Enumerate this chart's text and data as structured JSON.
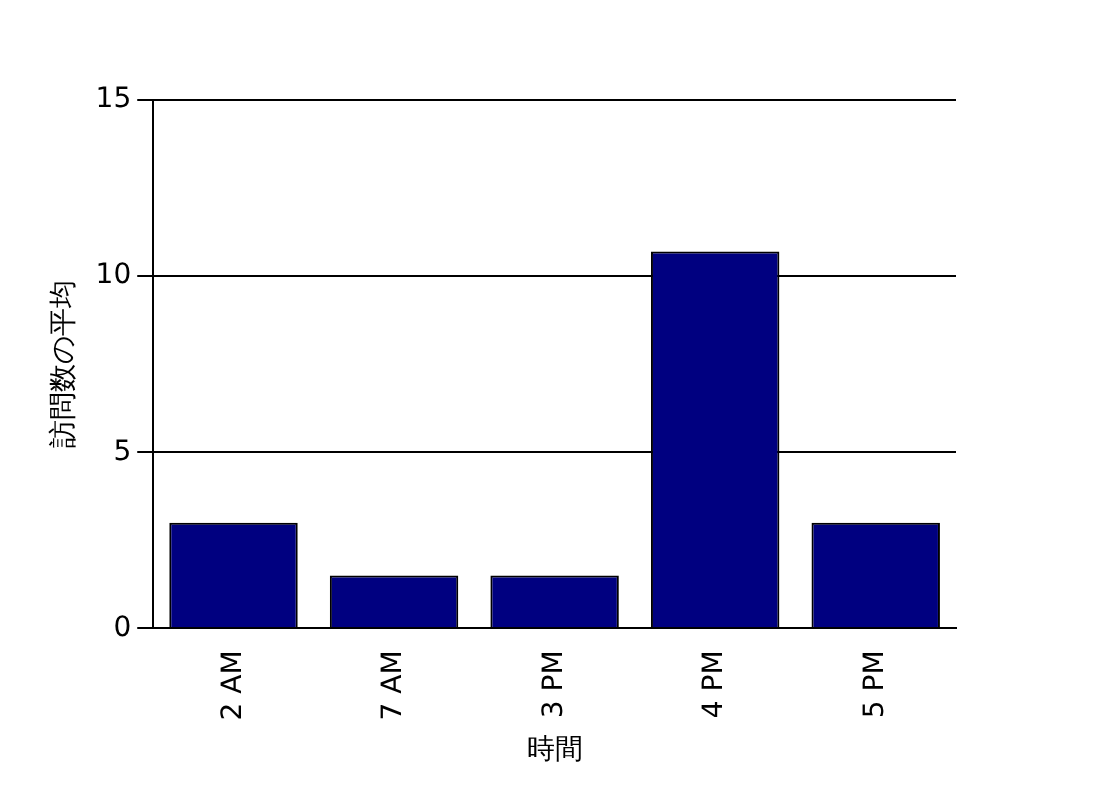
{
  "chart_data": {
    "type": "bar",
    "xlabel": "時間",
    "ylabel": "訪問数の平均",
    "categories": [
      "2 AM",
      "7 AM",
      "3 PM",
      "4 PM",
      "5 PM"
    ],
    "values": [
      3,
      1.5,
      1.5,
      10.7,
      3
    ],
    "color": "#000080",
    "ylim": [
      0,
      15
    ],
    "yticks": [
      0,
      5,
      10,
      15
    ],
    "grid": "y",
    "legend": false
  }
}
